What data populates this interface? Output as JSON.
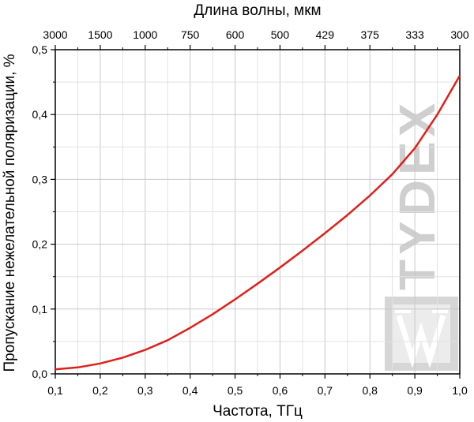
{
  "chart_data": {
    "type": "line",
    "xlabel": "Частота, ТГц",
    "ylabel": "Пропускание нежелательной поляризации, %",
    "x2label": "Длина волны, мкм",
    "xlim": [
      0.1,
      1.0
    ],
    "ylim": [
      0.0,
      0.5
    ],
    "x_ticks": [
      "0,1",
      "0,2",
      "0,3",
      "0,4",
      "0,5",
      "0,6",
      "0,7",
      "0,8",
      "0,9",
      "1,0"
    ],
    "y_ticks": [
      "0,0",
      "0,1",
      "0,2",
      "0,3",
      "0,4",
      "0,5"
    ],
    "x2_ticks": [
      "3000",
      "1500",
      "1000",
      "750",
      "600",
      "500",
      "429",
      "375",
      "333",
      "300"
    ],
    "grid": true,
    "series": [
      {
        "color": "#e0201b",
        "x": [
          0.1,
          0.15,
          0.2,
          0.25,
          0.3,
          0.35,
          0.4,
          0.45,
          0.5,
          0.55,
          0.6,
          0.65,
          0.7,
          0.75,
          0.8,
          0.85,
          0.9,
          0.95,
          1.0
        ],
        "y": [
          0.007,
          0.01,
          0.016,
          0.025,
          0.037,
          0.052,
          0.071,
          0.092,
          0.115,
          0.139,
          0.164,
          0.19,
          0.217,
          0.245,
          0.275,
          0.308,
          0.348,
          0.4,
          0.46
        ]
      }
    ]
  },
  "watermark": {
    "text": "TYDEX"
  }
}
